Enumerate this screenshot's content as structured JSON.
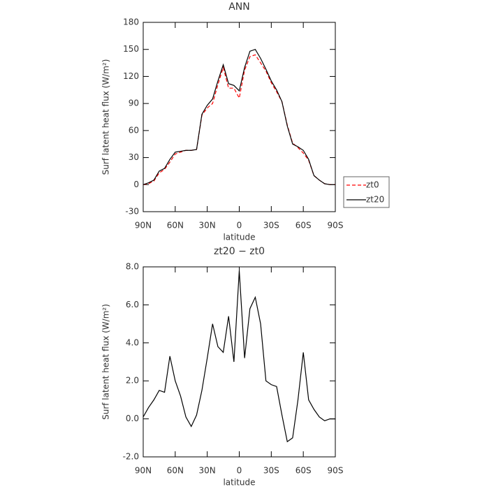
{
  "chart_data": [
    {
      "type": "line",
      "title": "ANN",
      "x_label": "latitude",
      "y_label": "Surf latent heat flux (W/m²)",
      "x": [
        90,
        85,
        80,
        75,
        70,
        65,
        60,
        55,
        50,
        45,
        40,
        35,
        30,
        25,
        20,
        15,
        10,
        5,
        0,
        -5,
        -10,
        -15,
        -20,
        -25,
        -30,
        -35,
        -40,
        -45,
        -50,
        -55,
        -60,
        -65,
        -70,
        -75,
        -80,
        -85,
        -90
      ],
      "series": [
        {
          "name": "zt0",
          "color": "#ff0000",
          "dash": true,
          "values": [
            0,
            1,
            4,
            13,
            17,
            25,
            34,
            36,
            38,
            38,
            39,
            77,
            85,
            90,
            111,
            130,
            107,
            107,
            96,
            127,
            142,
            144,
            135,
            126,
            113,
            103,
            92,
            66,
            46,
            41,
            35,
            27,
            10,
            5,
            1,
            0,
            0
          ]
        },
        {
          "name": "zt20",
          "color": "#000000",
          "dash": false,
          "values": [
            0,
            2,
            5,
            15,
            18,
            28,
            36,
            37,
            38,
            38,
            39,
            78,
            88,
            95,
            115,
            133,
            112,
            110,
            104,
            130,
            148,
            150,
            140,
            128,
            115,
            105,
            92,
            65,
            45,
            42,
            38,
            28,
            10,
            5,
            1,
            0,
            0
          ]
        }
      ],
      "xlim": [
        90,
        -90
      ],
      "xticks": [
        {
          "value": 90,
          "label": "90N"
        },
        {
          "value": 60,
          "label": "60N"
        },
        {
          "value": 30,
          "label": "30N"
        },
        0,
        {
          "value": -30,
          "label": "30S"
        },
        {
          "value": -60,
          "label": "60S"
        },
        {
          "value": -90,
          "label": "90S"
        }
      ],
      "ylim": [
        -30,
        180
      ],
      "yticks": [
        -30,
        0,
        30,
        60,
        90,
        120,
        150,
        180
      ],
      "legend": "right"
    },
    {
      "type": "line",
      "title": "zt20 − zt0",
      "x_label": "latitude",
      "y_label": "Surf latent heat flux (W/m²)",
      "x": [
        90,
        85,
        80,
        75,
        70,
        65,
        60,
        55,
        50,
        45,
        40,
        35,
        30,
        25,
        20,
        15,
        10,
        5,
        0,
        -5,
        -10,
        -15,
        -20,
        -25,
        -30,
        -35,
        -40,
        -45,
        -50,
        -55,
        -60,
        -65,
        -70,
        -75,
        -80,
        -85,
        -90
      ],
      "series": [
        {
          "color": "#000000",
          "dash": false,
          "values": [
            0.1,
            0.6,
            1.0,
            1.5,
            1.4,
            3.3,
            2.0,
            1.2,
            0.1,
            -0.4,
            0.2,
            1.5,
            3.2,
            5.0,
            3.8,
            3.5,
            5.4,
            3.0,
            7.8,
            3.2,
            5.8,
            6.4,
            5.0,
            2.0,
            1.8,
            1.7,
            0.2,
            -1.2,
            -1.0,
            1.0,
            3.5,
            1.0,
            0.5,
            0.1,
            -0.1,
            0,
            0
          ]
        }
      ],
      "xlim": [
        90,
        -90
      ],
      "xticks": [
        {
          "value": 90,
          "label": "90N"
        },
        {
          "value": 60,
          "label": "60N"
        },
        {
          "value": 30,
          "label": "30N"
        },
        0,
        {
          "value": -30,
          "label": "30S"
        },
        {
          "value": -60,
          "label": "60S"
        },
        {
          "value": -90,
          "label": "90S"
        }
      ],
      "ylim": [
        -2,
        8
      ],
      "yticks": [
        {
          "value": -2,
          "label": "-2.0"
        },
        {
          "value": 0,
          "label": "0.0"
        },
        {
          "value": 2,
          "label": "2.0"
        },
        {
          "value": 4,
          "label": "4.0"
        },
        {
          "value": 6,
          "label": "6.0"
        },
        {
          "value": 8,
          "label": "8.0"
        }
      ]
    }
  ]
}
